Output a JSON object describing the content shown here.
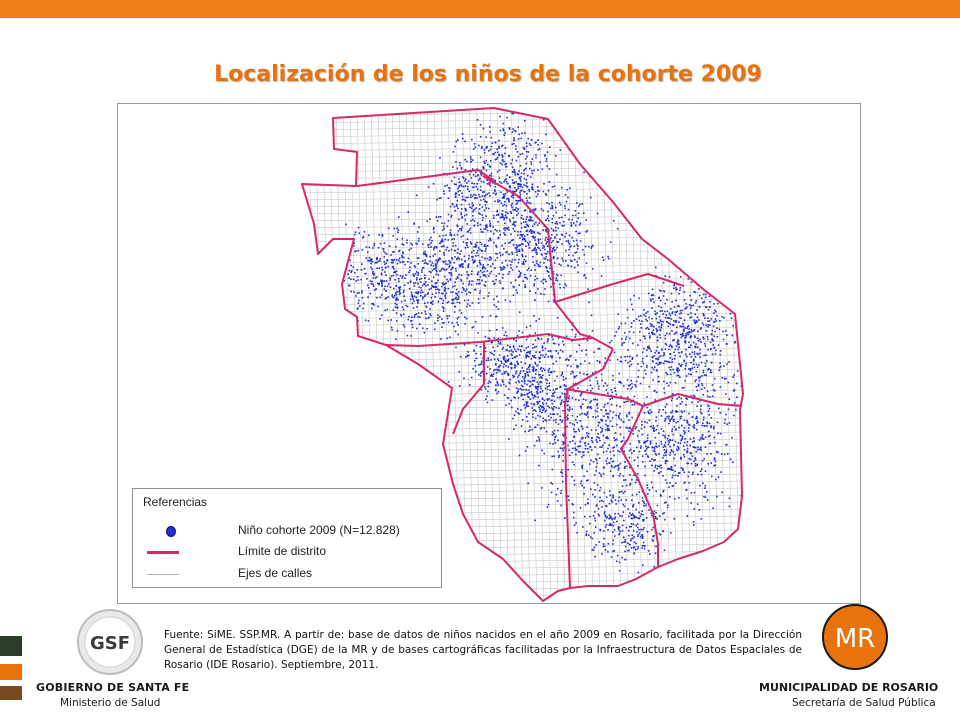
{
  "header": {
    "bar_color": "#ef7f1a"
  },
  "title": "Localización de los niños de la cohorte 2009",
  "map": {
    "boundary_color": "#d6286a",
    "point_color": "#1f2fd0",
    "street_color": "#c8c8c8",
    "legend": {
      "title": "Referencias",
      "items": [
        {
          "symbol": "blue-dot",
          "label": "Niño cohorte 2009 (N=12.828)"
        },
        {
          "symbol": "pink-line",
          "label": "Límite de distrito"
        },
        {
          "symbol": "gray-line",
          "label": "Ejes de calles"
        }
      ]
    }
  },
  "source_text": "Fuente: SiME. SSP.MR. A partir de: base de datos de niños nacidos en el año 2009 en Rosario, facilitada por la Dirección General de Estadística (DGE) de la MR y de bases cartográficas facilitadas por la Infraestructura de Datos Espaciales de Rosario (IDE Rosario). Septiembre, 2011.",
  "logos": {
    "left": {
      "mark": "GSF",
      "name": "GOBIERNO DE SANTA FE",
      "sub": "Ministerio de Salud"
    },
    "right": {
      "mark": "MR",
      "name": "MUNICIPALIDAD DE ROSARIO",
      "sub": "Secretaría de Salud Pública"
    }
  }
}
